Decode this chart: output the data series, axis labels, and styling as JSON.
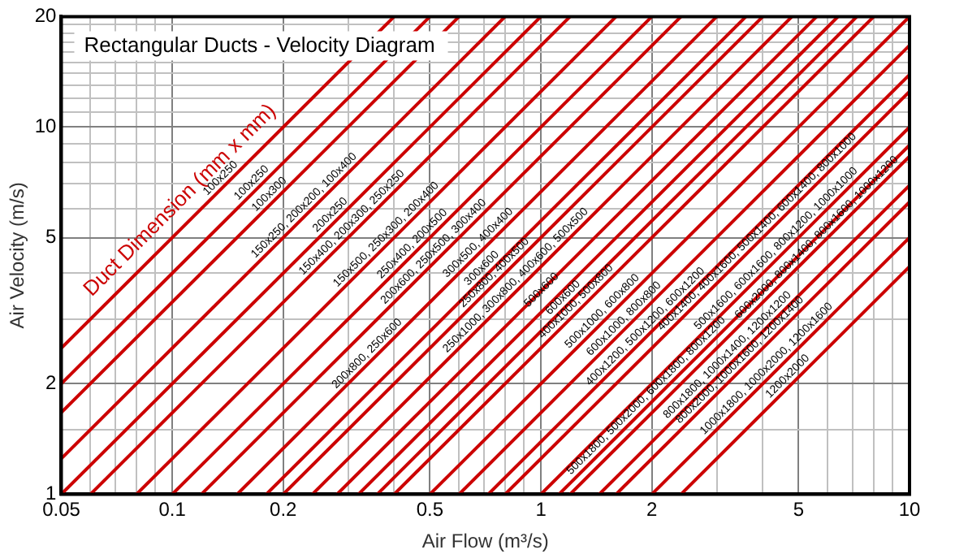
{
  "chart_data": {
    "type": "line",
    "title": "Rectangular Ducts - Velocity Diagram",
    "xlabel": "Air Flow (m³/s)",
    "ylabel": "Air Velocity (m/s)",
    "log": "xy",
    "grid": true,
    "legend": false,
    "marker": "none",
    "line_style": "solid",
    "xlim": [
      0.05,
      10
    ],
    "ylim": [
      1,
      20
    ],
    "xticks": [
      0.05,
      {
        "value": 0.06,
        "label": null
      },
      {
        "value": 0.07,
        "label": null
      },
      {
        "value": 0.08,
        "label": null
      },
      {
        "value": 0.09,
        "label": null
      },
      0.1,
      0.2,
      {
        "value": 0.3,
        "label": null
      },
      {
        "value": 0.4,
        "label": null
      },
      0.5,
      {
        "value": 0.6,
        "label": null
      },
      {
        "value": 0.7,
        "label": null
      },
      {
        "value": 0.8,
        "label": null
      },
      {
        "value": 0.9,
        "label": null
      },
      1,
      2,
      {
        "value": 3,
        "label": null
      },
      {
        "value": 4,
        "label": null
      },
      5,
      {
        "value": 6,
        "label": null
      },
      {
        "value": 7,
        "label": null
      },
      {
        "value": 8,
        "label": null
      },
      {
        "value": 9,
        "label": null
      },
      10
    ],
    "yticks": [
      1,
      {
        "value": 1.5,
        "label": null
      },
      2,
      {
        "value": 3,
        "label": null
      },
      {
        "value": 4,
        "label": null
      },
      5,
      {
        "value": 6,
        "label": null
      },
      {
        "value": 7,
        "label": null
      },
      {
        "value": 8,
        "label": null
      },
      {
        "value": 9,
        "label": null
      },
      10,
      {
        "value": 11,
        "label": null
      },
      {
        "value": 12,
        "label": null
      },
      {
        "value": 13,
        "label": null
      },
      {
        "value": 14,
        "label": null
      },
      {
        "value": 15,
        "label": null
      },
      {
        "value": 16,
        "label": null
      },
      {
        "value": 17,
        "label": null
      },
      {
        "value": 18,
        "label": null
      },
      {
        "value": 19,
        "label": null
      },
      20
    ],
    "series": [
      {
        "color": "#cc0000",
        "x": [
          0.05,
          0.4
        ],
        "values": [
          2.5,
          20
        ]
      },
      {
        "color": "#cc0000",
        "x": [
          0.05,
          0.5
        ],
        "values": [
          2,
          20
        ]
      },
      {
        "color": "#cc0000",
        "x": [
          0.05,
          0.6
        ],
        "values": [
          1.67,
          20
        ]
      },
      {
        "color": "#cc0000",
        "x": [
          0.05,
          0.8
        ],
        "values": [
          1.25,
          20
        ]
      },
      {
        "color": "#cc0000",
        "x": [
          0.05,
          1
        ],
        "values": [
          1,
          20
        ]
      },
      {
        "color": "#cc0000",
        "x": [
          0.06,
          1.2
        ],
        "values": [
          1,
          20
        ]
      },
      {
        "color": "#cc0000",
        "x": [
          0.08,
          1.6
        ],
        "values": [
          1,
          20
        ]
      },
      {
        "color": "#cc0000",
        "x": [
          0.1,
          2
        ],
        "values": [
          1,
          20
        ]
      },
      {
        "color": "#cc0000",
        "x": [
          0.12,
          2.4
        ],
        "values": [
          1,
          20
        ]
      },
      {
        "color": "#cc0000",
        "x": [
          0.15,
          3
        ],
        "values": [
          1,
          20
        ]
      },
      {
        "color": "#cc0000",
        "x": [
          0.18,
          3.6
        ],
        "values": [
          1,
          20
        ]
      },
      {
        "color": "#cc0000",
        "x": [
          0.2,
          4
        ],
        "values": [
          1,
          20
        ]
      },
      {
        "color": "#cc0000",
        "x": [
          0.24,
          4.8
        ],
        "values": [
          1,
          20
        ]
      },
      {
        "color": "#cc0000",
        "x": [
          0.28,
          5.6
        ],
        "values": [
          1,
          20
        ]
      },
      {
        "color": "#cc0000",
        "x": [
          0.32,
          6.4
        ],
        "values": [
          1,
          20
        ]
      },
      {
        "color": "#cc0000",
        "x": [
          0.36,
          7.2
        ],
        "values": [
          1,
          20
        ]
      },
      {
        "color": "#cc0000",
        "x": [
          0.4,
          8
        ],
        "values": [
          1,
          20
        ]
      },
      {
        "color": "#cc0000",
        "x": [
          0.5,
          10
        ],
        "values": [
          1,
          20
        ]
      },
      {
        "color": "#cc0000",
        "x": [
          0.6,
          10
        ],
        "values": [
          1,
          16.7
        ]
      },
      {
        "color": "#cc0000",
        "x": [
          0.72,
          10
        ],
        "values": [
          1,
          13.9
        ]
      },
      {
        "color": "#cc0000",
        "x": [
          0.8,
          10
        ],
        "values": [
          1,
          12.5
        ]
      },
      {
        "color": "#cc0000",
        "x": [
          1,
          10
        ],
        "values": [
          1,
          10
        ]
      },
      {
        "color": "#cc0000",
        "x": [
          1.12,
          10
        ],
        "values": [
          1,
          8.93
        ]
      },
      {
        "color": "#cc0000",
        "x": [
          1.2,
          10
        ],
        "values": [
          1,
          8.33
        ]
      },
      {
        "color": "#cc0000",
        "x": [
          1.44,
          10
        ],
        "values": [
          1,
          6.94
        ]
      },
      {
        "color": "#cc0000",
        "x": [
          1.6,
          10
        ],
        "values": [
          1,
          6.25
        ]
      },
      {
        "color": "#cc0000",
        "x": [
          2,
          10
        ],
        "values": [
          1,
          5
        ]
      },
      {
        "color": "#cc0000",
        "x": [
          2.4,
          10
        ],
        "values": [
          1,
          4.17
        ]
      }
    ],
    "annotations": [
      "Duct Dimension (mm x mm)",
      {
        "text": "100x250",
        "x": 0.14,
        "y": 7
      },
      {
        "text": "100x250",
        "x": 0.17,
        "y": 6.8
      },
      {
        "text": "100x300",
        "x": 0.19,
        "y": 6.33
      },
      {
        "text": "150x250, 200x200, 100x400",
        "x": 0.236,
        "y": 5.9
      },
      {
        "text": "200x250",
        "x": 0.278,
        "y": 5.56
      },
      {
        "text": "150x400, 200x300, 250x250",
        "x": 0.318,
        "y": 5.3
      },
      {
        "text": "150x500, 250x300, 200x400",
        "x": 0.394,
        "y": 4.92
      },
      {
        "text": "250x400, 200x500",
        "x": 0.464,
        "y": 4.64
      },
      {
        "text": "200x600, 250x500, 300x400",
        "x": 0.53,
        "y": 4.42
      },
      {
        "text": "300x500, 400x400",
        "x": 0.7,
        "y": 4.67
      },
      {
        "text": "200x800, 250x600",
        "x": 0.35,
        "y": 2.33
      },
      {
        "text": "300x600",
        "x": 0.716,
        "y": 3.98
      },
      {
        "text": "250x800, 400x500",
        "x": 0.774,
        "y": 3.87
      },
      {
        "text": "250x1000, 300x800, 400x600, 500x500",
        "x": 0.885,
        "y": 3.69
      },
      {
        "text": "500x600",
        "x": 1.04,
        "y": 3.47
      },
      {
        "text": "600x600",
        "x": 1.19,
        "y": 3.31
      },
      {
        "text": "400x1000, 500x800",
        "x": 1.29,
        "y": 3.23
      },
      {
        "text": "500x1000, 600x800",
        "x": 1.52,
        "y": 3.04
      },
      {
        "text": "600x1000, 800x800",
        "x": 1.74,
        "y": 2.9
      },
      {
        "text": "400x1200, 500x1200, 600x1200",
        "x": 1.99,
        "y": 2.76
      },
      {
        "text": "400x1400, 400x1600, 500x1400, 600x1400, 800x1000",
        "x": 4,
        "y": 5
      },
      {
        "text": "500x1600, 600x1600, 800x1200, 1000x1000",
        "x": 4.5,
        "y": 4.5
      },
      {
        "text": "500x1800, 500x2000, 600x1800, 800x1200",
        "x": 2,
        "y": 1.79
      },
      {
        "text": "600x2000, 800x1400, 800x1600, 1000x1200",
        "x": 5.8,
        "y": 4.83
      },
      {
        "text": "800x1800, 1000x1400, 1200x1200",
        "x": 3.32,
        "y": 2.31
      },
      {
        "text": "800x2000, 1000x1600, 1200x1400",
        "x": 3.59,
        "y": 2.24
      },
      {
        "text": "1000x1800, 1000x2000, 1200x1600",
        "x": 4.24,
        "y": 2.12
      },
      {
        "text": "1200x2000",
        "x": 4.84,
        "y": 2.02
      }
    ]
  }
}
